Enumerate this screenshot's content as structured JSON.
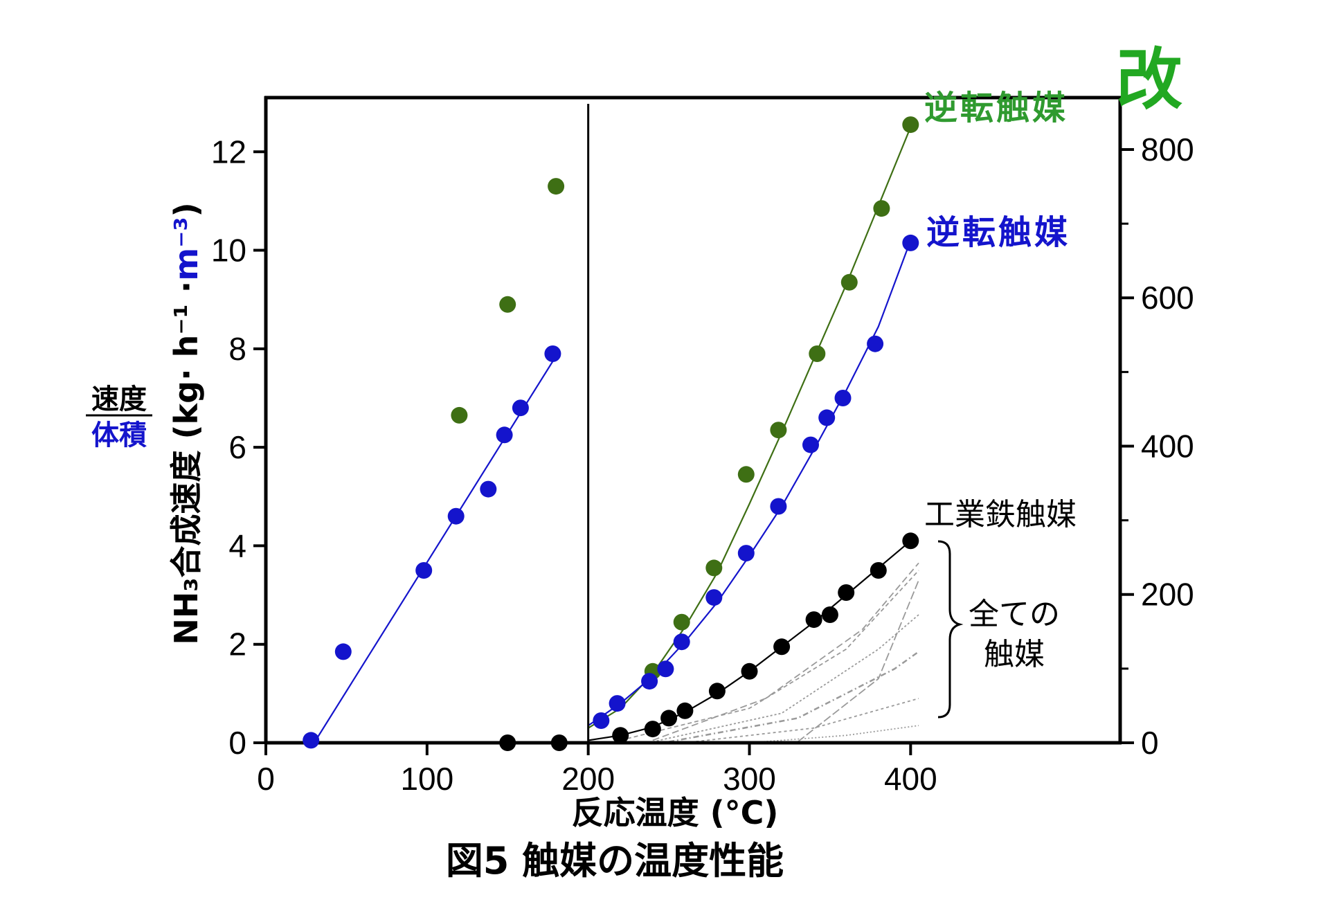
{
  "chart_data": {
    "type": "scatter",
    "caption": "図5 触媒の温度性能",
    "xlabel": "反応温度 (°C)",
    "ylabel_main": "NH₃合成速度 (kg· h⁻¹ ·",
    "ylabel_unit": "m⁻³",
    "ylabel_close": ")",
    "ratio_top": "速度",
    "ratio_bottom": "体積",
    "x_ticks": [
      "0",
      "100",
      "200",
      "300",
      "400"
    ],
    "y_left_ticks": [
      "0",
      "2",
      "4",
      "6",
      "8",
      "10",
      "12"
    ],
    "y_right_ticks": [
      "0",
      "200",
      "400",
      "600",
      "800"
    ],
    "xlim": [
      0,
      530
    ],
    "ylim_left": [
      0,
      13.1
    ],
    "ylim_right": [
      0,
      870
    ],
    "divider_x": 200,
    "colors": {
      "green": "#3e6f14",
      "blue": "#1414cc",
      "black": "#000000",
      "brand_green": "#2f9a2f",
      "brand_kai": "#22a822",
      "gray": "#9a9a9a"
    },
    "series": [
      {
        "name": "逆転触媒改",
        "color": "green",
        "points": [
          [
            120,
            6.65
          ],
          [
            150,
            8.9
          ],
          [
            180,
            11.3
          ],
          [
            240,
            1.45
          ],
          [
            258,
            2.45
          ],
          [
            278,
            3.55
          ],
          [
            298,
            5.45
          ],
          [
            318,
            6.35
          ],
          [
            342,
            7.9
          ],
          [
            362,
            9.35
          ],
          [
            382,
            10.85
          ],
          [
            400,
            12.55
          ]
        ],
        "fit": [
          [
            200,
            0.3
          ],
          [
            220,
            0.7
          ],
          [
            240,
            1.4
          ],
          [
            260,
            2.35
          ],
          [
            280,
            3.45
          ],
          [
            300,
            4.85
          ],
          [
            320,
            6.3
          ],
          [
            340,
            7.8
          ],
          [
            360,
            9.3
          ],
          [
            380,
            10.9
          ],
          [
            400,
            12.5
          ]
        ]
      },
      {
        "name": "逆転触媒",
        "color": "blue",
        "points": [
          [
            28,
            0.05
          ],
          [
            48,
            1.85
          ],
          [
            98,
            3.5
          ],
          [
            118,
            4.6
          ],
          [
            138,
            5.15
          ],
          [
            148,
            6.25
          ],
          [
            158,
            6.8
          ],
          [
            178,
            7.9
          ],
          [
            208,
            0.45
          ],
          [
            218,
            0.8
          ],
          [
            238,
            1.25
          ],
          [
            248,
            1.5
          ],
          [
            258,
            2.05
          ],
          [
            278,
            2.95
          ],
          [
            298,
            3.85
          ],
          [
            318,
            4.8
          ],
          [
            338,
            6.05
          ],
          [
            348,
            6.6
          ],
          [
            358,
            7.0
          ],
          [
            378,
            8.1
          ],
          [
            400,
            10.15
          ]
        ],
        "fit": [
          [
            30,
            0.0
          ],
          [
            180,
            7.85
          ],
          [
            200,
            0.35
          ],
          [
            220,
            0.8
          ],
          [
            240,
            1.35
          ],
          [
            260,
            2.05
          ],
          [
            280,
            2.85
          ],
          [
            300,
            3.8
          ],
          [
            320,
            4.8
          ],
          [
            340,
            5.95
          ],
          [
            360,
            7.15
          ],
          [
            380,
            8.45
          ],
          [
            400,
            10.2
          ]
        ]
      },
      {
        "name": "工業鉄触媒",
        "color": "black",
        "points": [
          [
            150,
            0.0
          ],
          [
            182,
            0.0
          ],
          [
            220,
            0.15
          ],
          [
            240,
            0.28
          ],
          [
            250,
            0.5
          ],
          [
            260,
            0.65
          ],
          [
            280,
            1.05
          ],
          [
            300,
            1.45
          ],
          [
            320,
            1.95
          ],
          [
            340,
            2.5
          ],
          [
            350,
            2.6
          ],
          [
            360,
            3.05
          ],
          [
            380,
            3.5
          ],
          [
            400,
            4.1
          ]
        ],
        "fit": [
          [
            150,
            0.0
          ],
          [
            182,
            0.0
          ],
          [
            200,
            0.05
          ],
          [
            220,
            0.15
          ],
          [
            240,
            0.32
          ],
          [
            260,
            0.62
          ],
          [
            280,
            1.0
          ],
          [
            300,
            1.45
          ],
          [
            320,
            1.95
          ],
          [
            340,
            2.45
          ],
          [
            360,
            3.0
          ],
          [
            380,
            3.55
          ],
          [
            400,
            4.1
          ]
        ]
      }
    ],
    "gray_curves": [
      [
        [
          220,
          0.05
        ],
        [
          300,
          0.7
        ],
        [
          360,
          1.9
        ],
        [
          405,
          3.5
        ]
      ],
      [
        [
          240,
          0.05
        ],
        [
          310,
          0.9
        ],
        [
          370,
          2.3
        ],
        [
          405,
          3.65
        ]
      ],
      [
        [
          240,
          0.02
        ],
        [
          320,
          0.6
        ],
        [
          380,
          1.9
        ],
        [
          405,
          2.6
        ]
      ],
      [
        [
          250,
          0.02
        ],
        [
          330,
          0.5
        ],
        [
          390,
          1.5
        ],
        [
          405,
          1.85
        ]
      ],
      [
        [
          260,
          0.0
        ],
        [
          340,
          0.3
        ],
        [
          405,
          0.9
        ]
      ],
      [
        [
          300,
          0.0
        ],
        [
          360,
          0.15
        ],
        [
          405,
          0.35
        ]
      ],
      [
        [
          330,
          0.02
        ],
        [
          380,
          1.3
        ],
        [
          405,
          3.3
        ]
      ]
    ],
    "annotations": {
      "iron_label": "工業鉄触媒",
      "all_line1": "全ての",
      "all_line2": "触媒",
      "brand_green": "逆転触媒",
      "brand_kai": "改",
      "brand_blue": "逆転触媒"
    }
  }
}
